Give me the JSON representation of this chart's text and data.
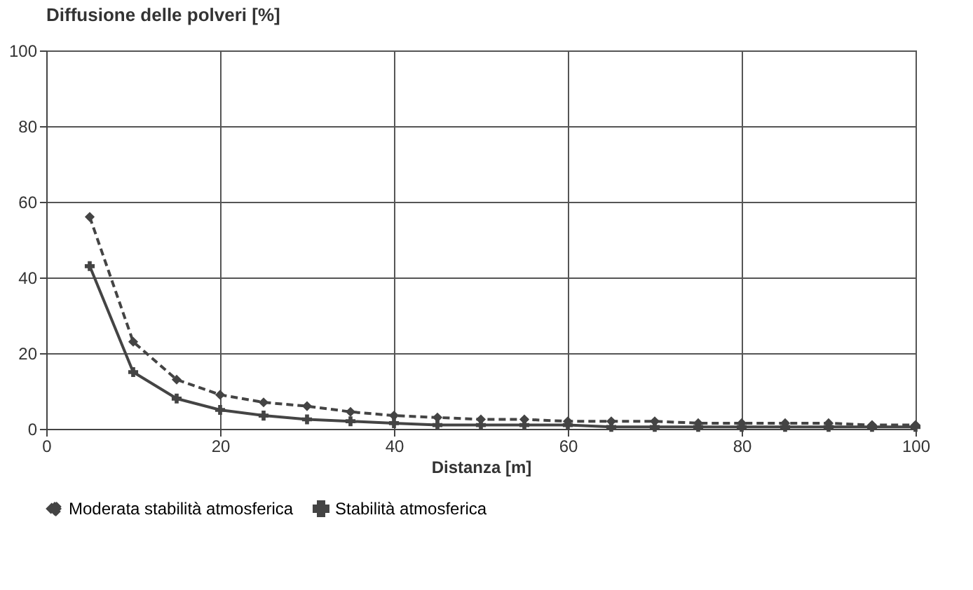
{
  "chart_data": {
    "type": "line",
    "title": "Diffusione delle polveri [%]",
    "xlabel": "Distanza [m]",
    "x": [
      5,
      10,
      15,
      20,
      25,
      30,
      35,
      40,
      45,
      50,
      55,
      60,
      65,
      70,
      75,
      80,
      85,
      90,
      95,
      100
    ],
    "series": [
      {
        "name": "Moderata stabilità atmosferica",
        "color": "#444444",
        "marker": "diamond",
        "line_style": "dashed",
        "values": [
          56,
          23,
          13,
          9,
          7,
          6,
          4.5,
          3.5,
          3,
          2.5,
          2.5,
          2,
          2,
          2,
          1.5,
          1.5,
          1.5,
          1.5,
          1,
          1
        ]
      },
      {
        "name": "Stabilità atmosferica",
        "color": "#444444",
        "marker": "cross",
        "line_style": "solid",
        "values": [
          43,
          15,
          8,
          5,
          3.5,
          2.5,
          2,
          1.5,
          1,
          1,
          1,
          1,
          0.5,
          0.5,
          0.5,
          0.5,
          0.5,
          0.5,
          0.5,
          0.5
        ]
      }
    ],
    "xlim": [
      0,
      100
    ],
    "xticks": [
      0,
      20,
      40,
      60,
      80,
      100
    ],
    "ylim": [
      0,
      100
    ],
    "yticks": [
      0,
      20,
      40,
      60,
      80,
      100
    ],
    "grid": true,
    "legend": "bottom"
  }
}
